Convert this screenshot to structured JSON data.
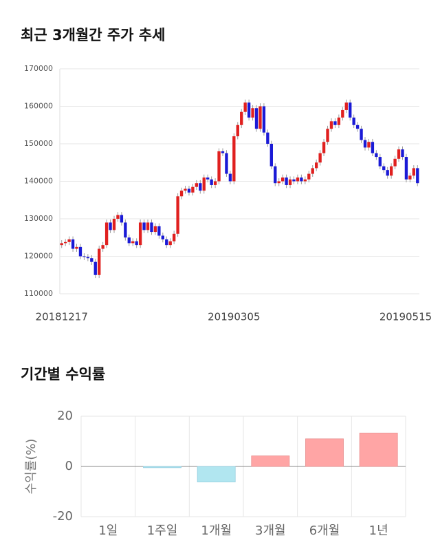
{
  "chart_data": [
    {
      "type": "candlestick",
      "title": "최근 3개월간 주가 추세",
      "categories": [
        "20181217",
        null,
        null,
        null,
        null,
        null,
        null,
        null,
        null,
        null,
        null,
        null,
        null,
        null,
        null,
        null,
        null,
        null,
        null,
        null,
        null,
        null,
        null,
        null,
        null,
        null,
        null,
        null,
        null,
        null,
        null,
        null,
        null,
        null,
        null,
        null,
        null,
        null,
        null,
        null,
        null,
        null,
        null,
        null,
        null,
        null,
        "20190305",
        null,
        null,
        null,
        null,
        null,
        null,
        null,
        null,
        null,
        null,
        null,
        null,
        null,
        null,
        null,
        null,
        null,
        null,
        null,
        null,
        null,
        null,
        null,
        null,
        null,
        null,
        null,
        null,
        null,
        null,
        null,
        null,
        null,
        null,
        null,
        null,
        null,
        null,
        null,
        null,
        null,
        null,
        null,
        null,
        null,
        null,
        null,
        null,
        "20190515"
      ],
      "open": [
        123000,
        123500,
        123800,
        124500,
        122000,
        122500,
        120000,
        119800,
        119500,
        118500,
        115000,
        122000,
        123000,
        129000,
        127000,
        130000,
        131000,
        129000,
        125000,
        123500,
        124000,
        123000,
        129000,
        127000,
        129000,
        126500,
        128000,
        125500,
        124500,
        123000,
        124000,
        126000,
        136000,
        137500,
        138000,
        137000,
        138500,
        139500,
        137500,
        141000,
        140500,
        139000,
        140000,
        148000,
        147500,
        142000,
        140000,
        152000,
        155000,
        158500,
        161000,
        157000,
        159500,
        154000,
        160000,
        153000,
        150000,
        144000,
        139500,
        140000,
        141000,
        139000,
        140500,
        140000,
        141000,
        140000,
        140500,
        142000,
        143500,
        145000,
        147500,
        150500,
        154000,
        156000,
        155000,
        157000,
        159000,
        161000,
        157000,
        155000,
        154000,
        151000,
        149000,
        150500,
        147500,
        146500,
        144000,
        143000,
        141500,
        144000,
        146000,
        148500,
        146500,
        140500,
        141500,
        143500
      ],
      "high": [
        124300,
        124600,
        125300,
        125300,
        123300,
        123300,
        120800,
        120600,
        120300,
        119300,
        122800,
        123800,
        129800,
        129800,
        130800,
        131800,
        131800,
        129800,
        125800,
        124800,
        124800,
        129800,
        129800,
        129800,
        129800,
        128800,
        128800,
        126300,
        125300,
        124800,
        126800,
        136800,
        138300,
        138800,
        138800,
        139300,
        140300,
        140300,
        141800,
        141800,
        141300,
        140800,
        148800,
        148800,
        148300,
        142800,
        152800,
        155800,
        159300,
        161800,
        161800,
        160300,
        160300,
        160800,
        160800,
        153800,
        150800,
        144800,
        140800,
        141800,
        141800,
        141300,
        141300,
        141800,
        141800,
        141300,
        142800,
        144300,
        145800,
        148300,
        151300,
        154800,
        156800,
        156800,
        157800,
        159800,
        161800,
        161800,
        157800,
        155800,
        154800,
        151800,
        151300,
        151300,
        148300,
        147300,
        144800,
        143800,
        144800,
        146800,
        149300,
        149300,
        147300,
        142300,
        144300,
        144300
      ],
      "low": [
        122200,
        122700,
        123000,
        121200,
        121200,
        119200,
        119000,
        118700,
        117700,
        114200,
        114200,
        121200,
        122200,
        126200,
        126200,
        129200,
        128200,
        124200,
        122700,
        122700,
        122200,
        122200,
        126200,
        126200,
        125700,
        125700,
        124700,
        123700,
        122200,
        122200,
        123200,
        125200,
        135200,
        136700,
        136200,
        136200,
        137700,
        136700,
        136700,
        139700,
        138200,
        138200,
        139200,
        146700,
        141200,
        139200,
        139200,
        151200,
        154200,
        157700,
        156200,
        156200,
        153200,
        153200,
        152200,
        149200,
        143200,
        138700,
        138700,
        139200,
        138200,
        138200,
        139200,
        139200,
        139200,
        139200,
        139700,
        141200,
        142700,
        144200,
        146700,
        149700,
        153200,
        154200,
        154200,
        156200,
        158200,
        156200,
        154200,
        153200,
        150200,
        148200,
        148200,
        146700,
        145700,
        143200,
        142200,
        140700,
        140700,
        143200,
        145200,
        145700,
        139700,
        139700,
        140700,
        138700
      ],
      "close": [
        123500,
        123800,
        124500,
        122000,
        122500,
        120000,
        119800,
        119500,
        118500,
        115000,
        122000,
        123000,
        129000,
        127000,
        130000,
        131000,
        129000,
        125000,
        123500,
        124000,
        123000,
        129000,
        127000,
        129000,
        126500,
        128000,
        125500,
        124500,
        123000,
        124000,
        126000,
        136000,
        137500,
        138000,
        137000,
        138500,
        139500,
        137500,
        141000,
        140500,
        139000,
        140000,
        148000,
        147500,
        142000,
        140000,
        152000,
        155000,
        158500,
        161000,
        157000,
        159500,
        154000,
        160000,
        153000,
        150000,
        144000,
        139500,
        140000,
        141000,
        139000,
        140500,
        140000,
        141000,
        140000,
        140500,
        142000,
        143500,
        145000,
        147500,
        150500,
        154000,
        156000,
        155000,
        157000,
        159000,
        161000,
        157000,
        155000,
        154000,
        151000,
        149000,
        150500,
        147500,
        146500,
        144000,
        143000,
        141500,
        144000,
        146000,
        148500,
        146500,
        140500,
        141500,
        143500,
        139500
      ],
      "up_color": "#e0201f",
      "down_color": "#1a1ad6",
      "ylim": [
        110000,
        170000
      ],
      "yticks": [
        110000,
        120000,
        130000,
        140000,
        150000,
        160000,
        170000
      ],
      "grid": true
    },
    {
      "type": "bar",
      "title": "기간별 수익률",
      "y_label": "수익률(%)",
      "categories": [
        "1일",
        "1주일",
        "1개월",
        "3개월",
        "6개월",
        "1년"
      ],
      "values": [
        0,
        -0.5,
        -6.2,
        4.2,
        11.0,
        13.3
      ],
      "positive_color": "#ffa5a5",
      "negative_color": "#b1e6f0",
      "ylim": [
        -20,
        20
      ],
      "yticks": [
        -20,
        0,
        20
      ],
      "grid": true
    }
  ]
}
